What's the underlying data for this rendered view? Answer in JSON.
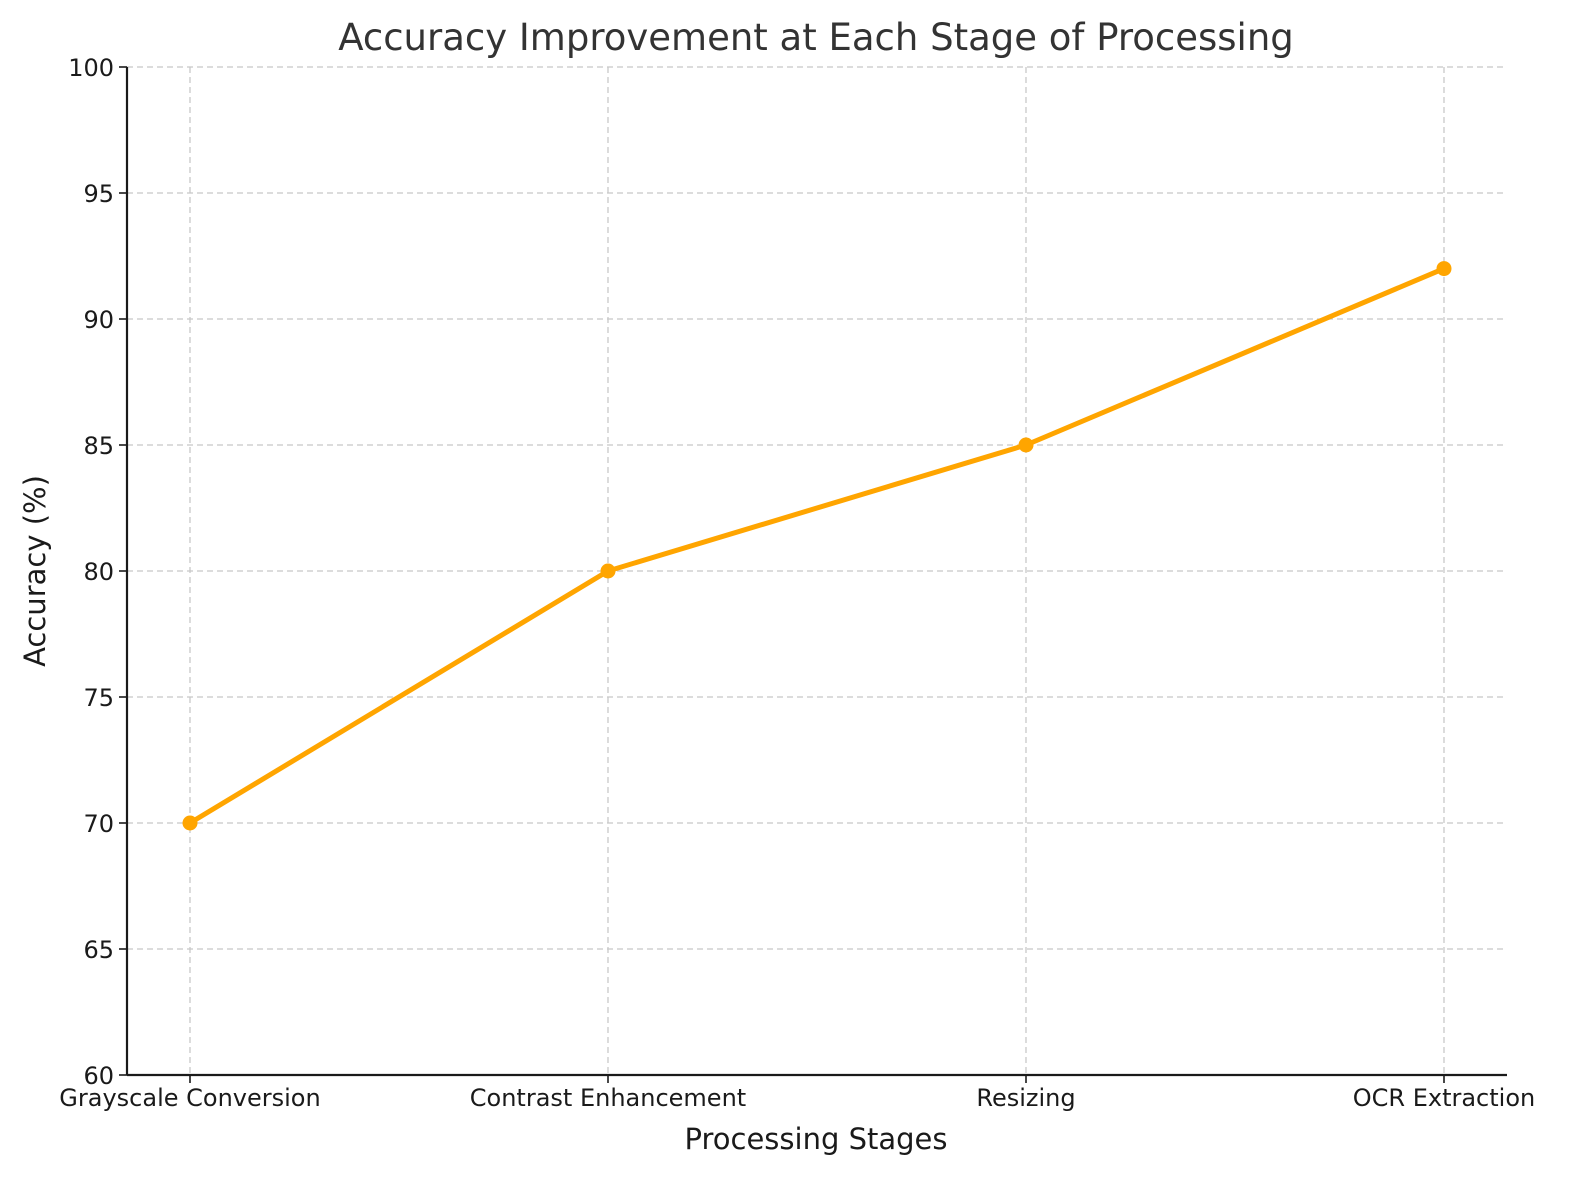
{
  "chart_data": {
    "type": "line",
    "title": "Accuracy Improvement at Each Stage of Processing",
    "xlabel": "Processing Stages",
    "ylabel": "Accuracy (%)",
    "categories": [
      "Grayscale Conversion",
      "Contrast Enhancement",
      "Resizing",
      "OCR Extraction"
    ],
    "series": [
      {
        "values": [
          70,
          80,
          85,
          92
        ],
        "color": "#ffa500",
        "marker": "circle"
      }
    ],
    "ylim": [
      60,
      100
    ],
    "yticks": [
      60,
      65,
      70,
      75,
      80,
      85,
      90,
      95,
      100
    ],
    "grid": true,
    "legend": "none"
  }
}
